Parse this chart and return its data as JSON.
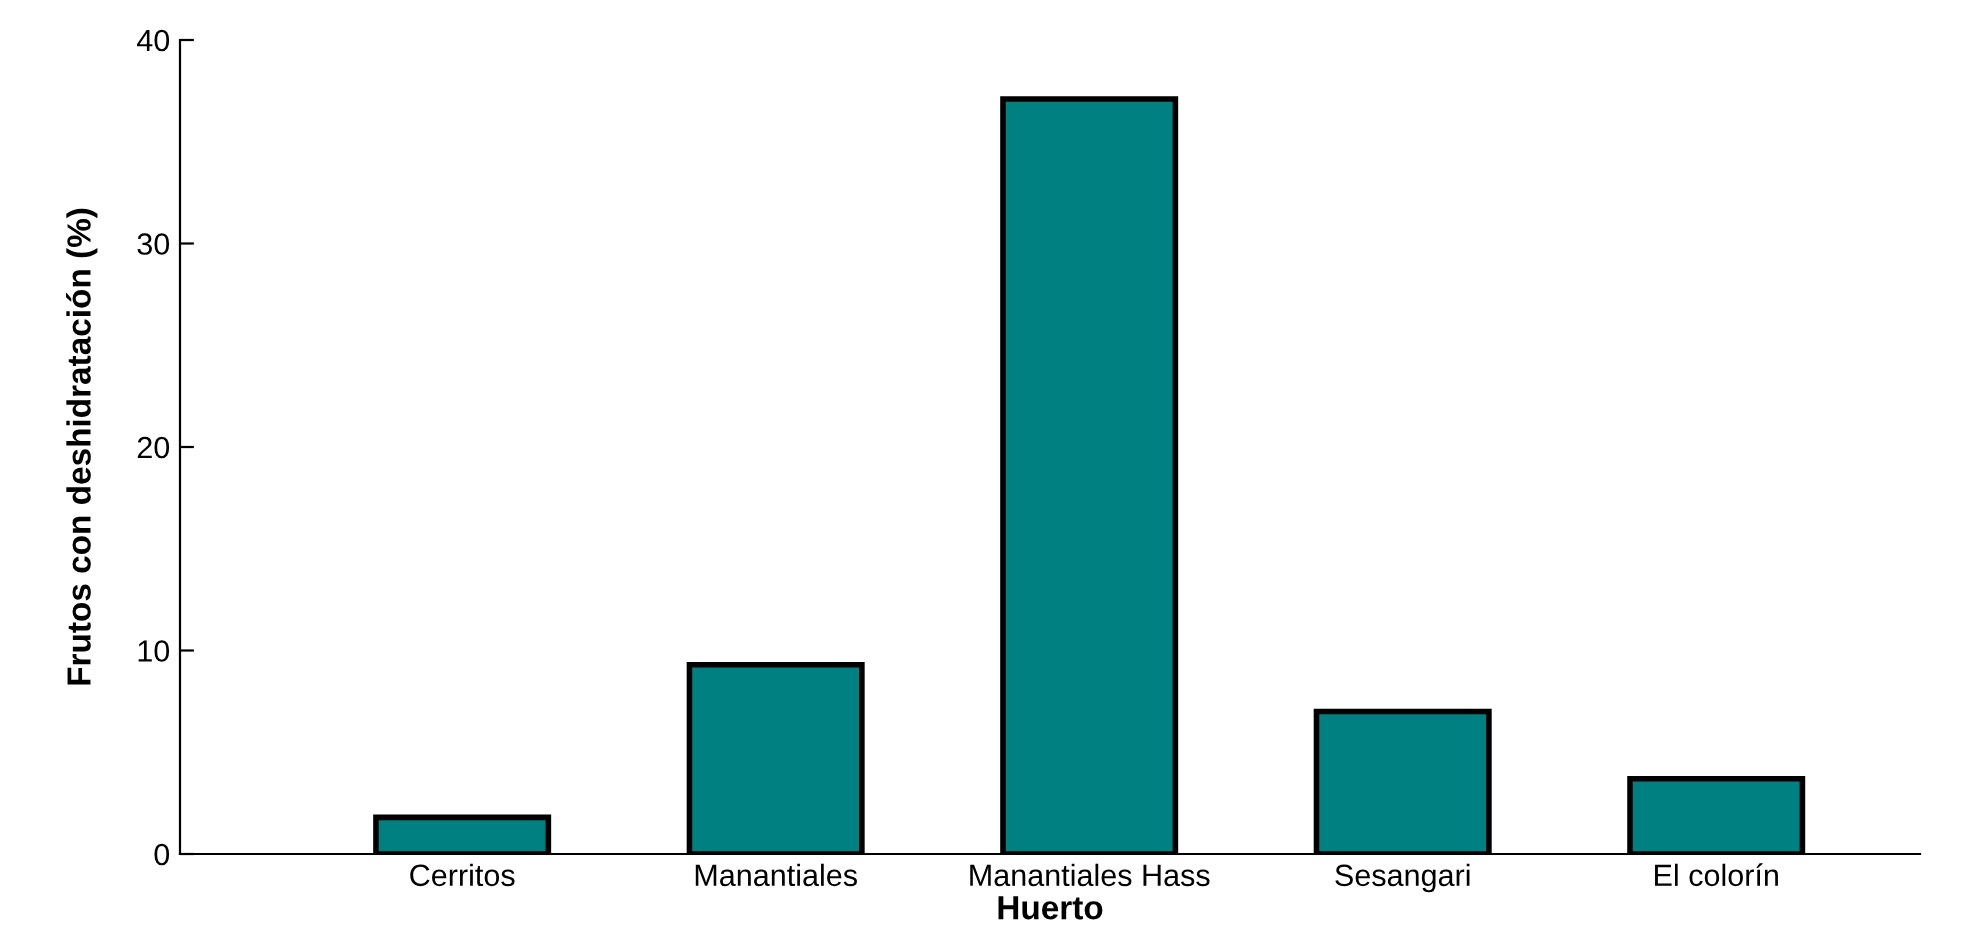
{
  "chart_data": {
    "type": "bar",
    "xlabel": "Huerto",
    "ylabel": "Frutos con deshidratación (%)",
    "categories": [
      "Cerritos",
      "Manantiales",
      "Manantiales Hass",
      "Sesangari",
      "El colorín"
    ],
    "values": [
      1.8,
      9.3,
      37.1,
      7.0,
      3.7
    ],
    "color": "#008080",
    "ylim": [
      0,
      40
    ],
    "yticks": [
      0,
      10,
      20,
      30,
      40
    ],
    "grid": false
  }
}
